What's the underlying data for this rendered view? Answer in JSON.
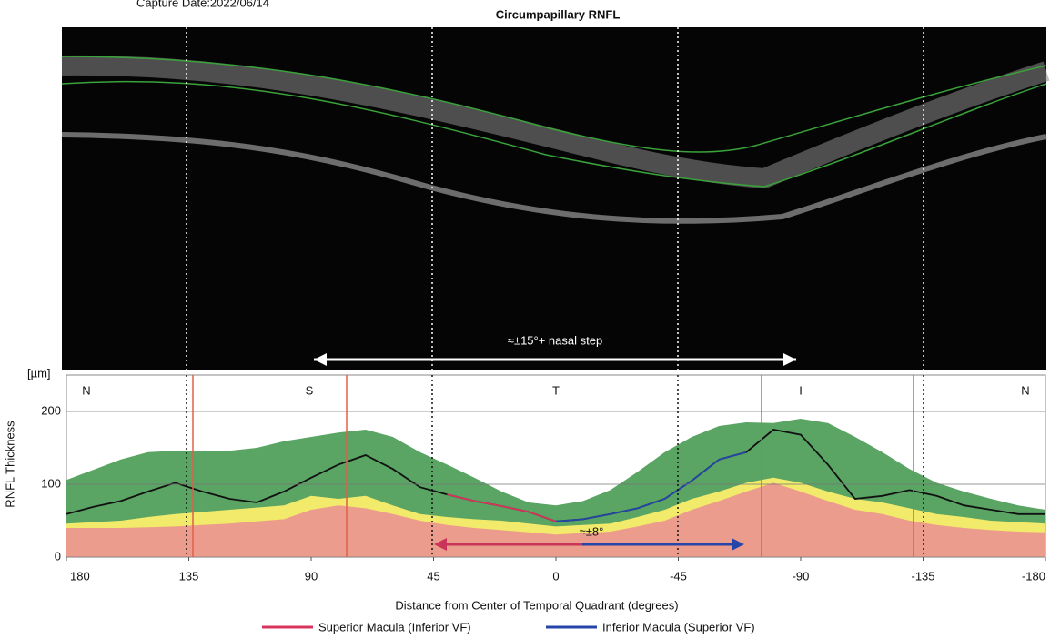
{
  "capture_date": "Capture Date:2022/06/14",
  "chart_data": {
    "type": "line",
    "title": "Circumpapillary RNFL",
    "y_label": "RNFL Thickness",
    "y_unit": "[µm]",
    "x_label": "Distance from Center of Temporal Quadrant (degrees)",
    "sectors": [
      "N",
      "S",
      "T",
      "I",
      "N"
    ],
    "annotations": [
      "≈±15°+ nasal step",
      "≈±8°"
    ],
    "xlim": [
      180,
      -180
    ],
    "xticks": [
      180,
      135,
      90,
      45,
      0,
      -45,
      -90,
      -135,
      -180
    ],
    "ylim": [
      0,
      250
    ],
    "yticks": [
      0,
      100,
      200
    ],
    "grid": true,
    "x": [
      180,
      170,
      160,
      150,
      140,
      130,
      120,
      110,
      100,
      90,
      80,
      70,
      60,
      50,
      40,
      30,
      20,
      10,
      0,
      -10,
      -20,
      -30,
      -40,
      -50,
      -60,
      -70,
      -80,
      -90,
      -100,
      -110,
      -120,
      -130,
      -140,
      -150,
      -160,
      -170,
      -180
    ],
    "series": [
      {
        "color": "#5aa464",
        "area": true,
        "values": [
          106,
          120,
          134,
          144,
          146,
          146,
          146,
          150,
          159,
          165,
          171,
          175,
          165,
          144,
          127,
          109,
          90,
          75,
          71,
          77,
          92,
          117,
          144,
          165,
          180,
          185,
          184,
          190,
          184,
          165,
          144,
          121,
          102,
          90,
          80,
          71,
          65
        ]
      },
      {
        "color": "#f2ea6a",
        "area": true,
        "values": [
          46,
          48,
          50,
          55,
          59,
          62,
          65,
          68,
          71,
          84,
          80,
          84,
          71,
          59,
          55,
          52,
          50,
          46,
          42,
          44,
          46,
          55,
          65,
          80,
          90,
          102,
          109,
          102,
          90,
          80,
          75,
          67,
          59,
          55,
          50,
          48,
          46
        ]
      },
      {
        "color": "#ec9c8c",
        "area": true,
        "values": [
          40,
          40,
          40,
          41,
          42,
          44,
          46,
          49,
          52,
          65,
          71,
          67,
          59,
          50,
          44,
          40,
          37,
          34,
          31,
          33,
          35,
          42,
          50,
          65,
          77,
          90,
          102,
          90,
          77,
          65,
          59,
          50,
          44,
          40,
          37,
          35,
          34
        ]
      },
      {
        "color": "#111111",
        "values": [
          59,
          69,
          77,
          90,
          102,
          90,
          80,
          75,
          90,
          109,
          127,
          140,
          121,
          96,
          86,
          77,
          70,
          62,
          49,
          52,
          59,
          67,
          80,
          105,
          134,
          144,
          175,
          168,
          127,
          80,
          84,
          92,
          84,
          71,
          65,
          59,
          59
        ]
      },
      {
        "name": "Superior Macula (Inferior VF)",
        "color": "#d9345e",
        "values": [
          null,
          null,
          null,
          null,
          null,
          null,
          null,
          null,
          null,
          null,
          null,
          null,
          null,
          null,
          86,
          77,
          70,
          62,
          49,
          null,
          null,
          null,
          null,
          null,
          null,
          null,
          null,
          null,
          null,
          null,
          null,
          null,
          null,
          null,
          null,
          null,
          null
        ]
      },
      {
        "name": "Inferior Macula (Superior VF)",
        "color": "#2545a8",
        "values": [
          null,
          null,
          null,
          null,
          null,
          null,
          null,
          null,
          null,
          null,
          null,
          null,
          null,
          null,
          null,
          null,
          null,
          null,
          49,
          52,
          59,
          67,
          80,
          105,
          134,
          144,
          null,
          null,
          null,
          null,
          null,
          null,
          null,
          null,
          null,
          null,
          null
        ]
      }
    ]
  }
}
